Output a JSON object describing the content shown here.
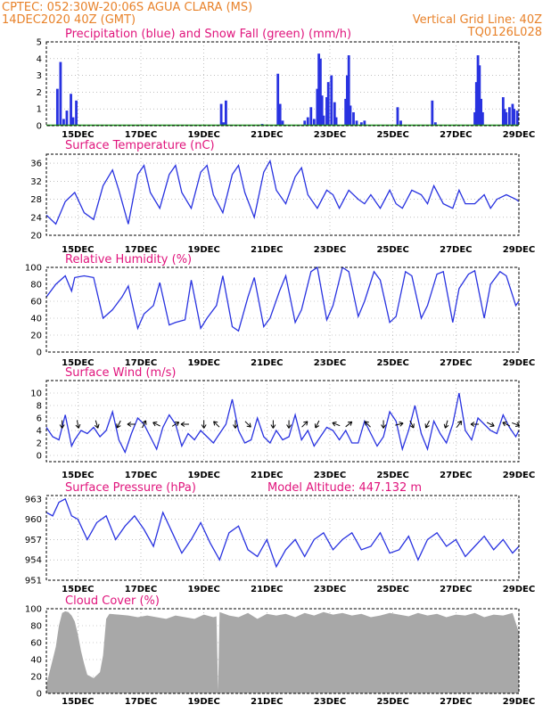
{
  "header": {
    "line1_left": "CPTEC:   052:30W-20:06S  AGUA CLARA (MS)",
    "line2_left": "14DEC2020 40Z (GMT)",
    "line2_right": "Vertical Grid Line: 40Z",
    "line3_right": "TQ0126L028"
  },
  "colors": {
    "header": "#e8822a",
    "title": "#e0147c",
    "precip": "#2832e0",
    "snow": "#1ea01e",
    "line": "#2832e0",
    "cloud": "#a8a8a8",
    "wind_arrow": "#000000"
  },
  "chart_data": [
    {
      "id": "precip",
      "type": "bar",
      "title": "Precipitation (blue) and Snow Fall (green) (mm/h)",
      "ylim": [
        0,
        5
      ],
      "yticks": [
        0,
        1,
        2,
        3,
        4,
        5
      ],
      "x_day_range": [
        14.0,
        29.0
      ],
      "xticks": [
        "15DEC",
        "17DEC",
        "19DEC",
        "21DEC",
        "23DEC",
        "25DEC",
        "27DEC",
        "29DEC"
      ],
      "series": [
        {
          "name": "Precipitation",
          "points": [
            [
              14.35,
              2.2
            ],
            [
              14.45,
              3.8
            ],
            [
              14.55,
              0.4
            ],
            [
              14.65,
              0.9
            ],
            [
              14.78,
              1.9
            ],
            [
              14.85,
              0.5
            ],
            [
              14.95,
              1.5
            ],
            [
              19.55,
              1.3
            ],
            [
              19.62,
              0.2
            ],
            [
              19.7,
              1.5
            ],
            [
              20.85,
              0.1
            ],
            [
              21.35,
              3.1
            ],
            [
              21.42,
              1.3
            ],
            [
              21.5,
              0.3
            ],
            [
              22.2,
              0.3
            ],
            [
              22.3,
              0.5
            ],
            [
              22.4,
              1.1
            ],
            [
              22.5,
              0.4
            ],
            [
              22.6,
              2.2
            ],
            [
              22.65,
              4.3
            ],
            [
              22.7,
              4.0
            ],
            [
              22.75,
              1.8
            ],
            [
              22.8,
              0.6
            ],
            [
              22.9,
              1.7
            ],
            [
              22.95,
              2.6
            ],
            [
              23.05,
              3.0
            ],
            [
              23.15,
              1.4
            ],
            [
              23.2,
              0.5
            ],
            [
              23.5,
              1.6
            ],
            [
              23.55,
              3.0
            ],
            [
              23.6,
              4.2
            ],
            [
              23.65,
              1.2
            ],
            [
              23.75,
              0.8
            ],
            [
              23.85,
              0.3
            ],
            [
              24.0,
              0.2
            ],
            [
              24.1,
              0.3
            ],
            [
              25.15,
              1.1
            ],
            [
              25.25,
              0.3
            ],
            [
              26.25,
              1.5
            ],
            [
              26.35,
              0.2
            ],
            [
              27.6,
              0.8
            ],
            [
              27.65,
              2.6
            ],
            [
              27.7,
              4.2
            ],
            [
              27.75,
              3.6
            ],
            [
              27.8,
              1.6
            ],
            [
              27.85,
              0.8
            ],
            [
              28.5,
              1.7
            ],
            [
              28.55,
              1.0
            ],
            [
              28.6,
              0.8
            ],
            [
              28.7,
              1.1
            ],
            [
              28.8,
              1.3
            ],
            [
              28.85,
              1.0
            ],
            [
              28.95,
              0.9
            ]
          ]
        },
        {
          "name": "Snow Fall",
          "points": []
        }
      ]
    },
    {
      "id": "temp",
      "type": "line",
      "title": "Surface Temperature (nC)",
      "ylim": [
        20,
        38
      ],
      "yticks": [
        20,
        24,
        28,
        32,
        36
      ],
      "x_day_range": [
        14.0,
        29.0
      ],
      "xticks": [
        "15DEC",
        "17DEC",
        "19DEC",
        "21DEC",
        "23DEC",
        "25DEC",
        "27DEC",
        "29DEC"
      ],
      "x": [
        14.0,
        14.3,
        14.6,
        14.9,
        15.2,
        15.5,
        15.8,
        16.1,
        16.3,
        16.6,
        16.9,
        17.1,
        17.3,
        17.6,
        17.9,
        18.1,
        18.3,
        18.6,
        18.9,
        19.1,
        19.3,
        19.6,
        19.9,
        20.1,
        20.3,
        20.6,
        20.9,
        21.1,
        21.3,
        21.6,
        21.9,
        22.1,
        22.3,
        22.6,
        22.9,
        23.1,
        23.3,
        23.6,
        23.9,
        24.1,
        24.3,
        24.6,
        24.9,
        25.1,
        25.3,
        25.6,
        25.9,
        26.1,
        26.3,
        26.6,
        26.9,
        27.1,
        27.3,
        27.6,
        27.9,
        28.1,
        28.3,
        28.6,
        28.9,
        29.0
      ],
      "y": [
        24.5,
        22.5,
        27.5,
        29.5,
        25,
        23.5,
        31,
        34.5,
        30,
        22.5,
        33.5,
        35.5,
        29.5,
        26,
        33.5,
        35.5,
        29.5,
        26,
        34,
        35.5,
        29,
        25,
        33.5,
        35.5,
        29.5,
        24,
        34,
        36.5,
        30,
        27,
        33,
        35,
        29,
        26,
        30,
        29,
        26,
        30,
        28,
        27,
        29,
        26,
        30,
        27,
        26,
        30,
        29,
        27,
        31,
        27,
        26,
        30,
        27,
        27,
        29,
        26,
        28,
        29,
        28,
        27.5
      ]
    },
    {
      "id": "rh",
      "type": "line",
      "title": "Relative Humidity (%)",
      "ylim": [
        0,
        100
      ],
      "yticks": [
        0,
        20,
        40,
        60,
        80,
        100
      ],
      "x_day_range": [
        14.0,
        29.0
      ],
      "xticks": [
        "15DEC",
        "17DEC",
        "19DEC",
        "21DEC",
        "23DEC",
        "25DEC",
        "27DEC",
        "29DEC"
      ],
      "x": [
        14.0,
        14.3,
        14.6,
        14.8,
        14.9,
        15.2,
        15.5,
        15.8,
        16.1,
        16.4,
        16.6,
        16.9,
        17.1,
        17.4,
        17.6,
        17.9,
        18.1,
        18.4,
        18.6,
        18.9,
        19.1,
        19.4,
        19.6,
        19.9,
        20.1,
        20.4,
        20.6,
        20.9,
        21.1,
        21.4,
        21.6,
        21.9,
        22.1,
        22.4,
        22.6,
        22.9,
        23.1,
        23.4,
        23.6,
        23.9,
        24.1,
        24.4,
        24.6,
        24.9,
        25.1,
        25.4,
        25.6,
        25.9,
        26.1,
        26.4,
        26.6,
        26.9,
        27.1,
        27.4,
        27.6,
        27.9,
        28.1,
        28.4,
        28.6,
        28.9,
        29.0
      ],
      "y": [
        65,
        80,
        90,
        72,
        88,
        90,
        88,
        40,
        50,
        65,
        78,
        28,
        45,
        55,
        82,
        32,
        35,
        38,
        85,
        28,
        40,
        55,
        90,
        30,
        25,
        65,
        88,
        30,
        40,
        72,
        90,
        35,
        50,
        95,
        100,
        38,
        55,
        100,
        95,
        42,
        60,
        95,
        85,
        35,
        42,
        95,
        90,
        40,
        55,
        92,
        95,
        35,
        75,
        92,
        96,
        40,
        80,
        95,
        90,
        55,
        60
      ]
    },
    {
      "id": "wind",
      "type": "line",
      "title": "Surface Wind (m/s)",
      "ylim": [
        -1,
        12
      ],
      "yticks": [
        0,
        2,
        4,
        6,
        8,
        10
      ],
      "x_day_range": [
        14.0,
        29.0
      ],
      "xticks": [
        "15DEC",
        "17DEC",
        "19DEC",
        "21DEC",
        "23DEC",
        "25DEC",
        "27DEC",
        "29DEC"
      ],
      "x": [
        14.0,
        14.2,
        14.4,
        14.6,
        14.8,
        14.9,
        15.1,
        15.3,
        15.5,
        15.7,
        15.9,
        16.1,
        16.3,
        16.5,
        16.7,
        16.9,
        17.1,
        17.3,
        17.5,
        17.7,
        17.9,
        18.1,
        18.3,
        18.5,
        18.7,
        18.9,
        19.1,
        19.3,
        19.5,
        19.7,
        19.9,
        20.1,
        20.3,
        20.5,
        20.7,
        20.9,
        21.1,
        21.3,
        21.5,
        21.7,
        21.9,
        22.1,
        22.3,
        22.5,
        22.7,
        22.9,
        23.1,
        23.3,
        23.5,
        23.7,
        23.9,
        24.1,
        24.3,
        24.5,
        24.7,
        24.9,
        25.1,
        25.3,
        25.5,
        25.7,
        25.9,
        26.1,
        26.3,
        26.5,
        26.7,
        26.9,
        27.1,
        27.3,
        27.5,
        27.7,
        27.9,
        28.1,
        28.3,
        28.5,
        28.7,
        28.9,
        29.0
      ],
      "y": [
        4.5,
        3.0,
        2.5,
        6.5,
        1.5,
        2.5,
        4.0,
        3.5,
        4.5,
        3.0,
        4.0,
        7.0,
        2.5,
        0.5,
        3.5,
        6.0,
        5.0,
        3.0,
        1.0,
        4.5,
        6.5,
        5.0,
        1.5,
        3.5,
        2.5,
        4.0,
        3.0,
        2.0,
        3.5,
        5.0,
        9.0,
        4.0,
        2.0,
        2.5,
        6.0,
        3.0,
        2.0,
        4.0,
        2.5,
        3.0,
        6.5,
        2.5,
        4.0,
        1.5,
        3.0,
        4.5,
        4.0,
        2.5,
        4.0,
        2.0,
        2.0,
        5.5,
        3.5,
        1.5,
        3.0,
        7.0,
        5.5,
        1.0,
        4.0,
        8.0,
        3.5,
        1.0,
        5.5,
        3.5,
        2.0,
        5.0,
        10.0,
        4.0,
        2.5,
        6.0,
        5.0,
        4.0,
        3.5,
        6.5,
        4.5,
        3.0,
        4.0
      ],
      "arrows": [
        [
          14.5,
          0.0,
          -1.0
        ],
        [
          15.0,
          0.2,
          -1.0
        ],
        [
          15.6,
          0.3,
          -1.0
        ],
        [
          16.3,
          -0.5,
          -1.0
        ],
        [
          16.7,
          -1.0,
          0.0
        ],
        [
          17.1,
          0.5,
          1.0
        ],
        [
          17.5,
          -1.0,
          0.5
        ],
        [
          18.1,
          0.8,
          0.5
        ],
        [
          18.4,
          -1.0,
          0.0
        ],
        [
          19.0,
          0.0,
          -1.0
        ],
        [
          19.4,
          -0.7,
          0.7
        ],
        [
          20.0,
          0.0,
          -1.0
        ],
        [
          20.4,
          0.8,
          -0.8
        ],
        [
          21.2,
          0.0,
          -1.0
        ],
        [
          21.7,
          0.0,
          -1.0
        ],
        [
          22.2,
          0.7,
          0.7
        ],
        [
          22.6,
          -0.5,
          -1.0
        ],
        [
          23.2,
          -1.0,
          0.4
        ],
        [
          23.6,
          1.0,
          0.8
        ],
        [
          24.2,
          -0.8,
          0.8
        ],
        [
          24.7,
          0.0,
          -1.0
        ],
        [
          25.2,
          0.8,
          0.2
        ],
        [
          25.6,
          0.5,
          -1.0
        ],
        [
          26.1,
          -0.5,
          -1.0
        ],
        [
          26.7,
          -0.3,
          -1.0
        ],
        [
          27.1,
          0.6,
          0.8
        ],
        [
          27.6,
          -1.0,
          0.0
        ],
        [
          28.1,
          1.0,
          -0.5
        ],
        [
          28.6,
          -1.0,
          0.5
        ],
        [
          28.9,
          0.8,
          -0.3
        ]
      ]
    },
    {
      "id": "pressure",
      "type": "line",
      "title": "Surface Pressure (hPa)",
      "subtitle": "Model Altitude: 447.132  m",
      "ylim": [
        951,
        963.5
      ],
      "yticks": [
        951,
        954,
        957,
        960,
        963
      ],
      "x_day_range": [
        14.0,
        29.0
      ],
      "xticks": [
        "15DEC",
        "17DEC",
        "19DEC",
        "21DEC",
        "23DEC",
        "25DEC",
        "27DEC",
        "29DEC"
      ],
      "x": [
        14.0,
        14.2,
        14.4,
        14.6,
        14.8,
        15.0,
        15.3,
        15.6,
        15.9,
        16.2,
        16.5,
        16.8,
        17.1,
        17.4,
        17.7,
        18.0,
        18.3,
        18.6,
        18.9,
        19.2,
        19.5,
        19.8,
        20.1,
        20.4,
        20.7,
        21.0,
        21.3,
        21.6,
        21.9,
        22.2,
        22.5,
        22.8,
        23.1,
        23.4,
        23.7,
        24.0,
        24.3,
        24.6,
        24.9,
        25.2,
        25.5,
        25.8,
        26.1,
        26.4,
        26.7,
        27.0,
        27.3,
        27.6,
        27.9,
        28.2,
        28.5,
        28.8,
        29.0
      ],
      "y": [
        961,
        960.5,
        962.5,
        963,
        960.5,
        960,
        957,
        959.5,
        960.5,
        957,
        959,
        960.5,
        958.5,
        956,
        961,
        958,
        955,
        957,
        959.5,
        956.5,
        954,
        958,
        959,
        955.5,
        954.5,
        957,
        953,
        955.5,
        957,
        954.5,
        957,
        958,
        955.5,
        957,
        958,
        955.5,
        956,
        958,
        955,
        955.5,
        957.5,
        954,
        957,
        958,
        956,
        957,
        954.5,
        956,
        957.5,
        955.5,
        957,
        955,
        956
      ]
    },
    {
      "id": "cloud",
      "type": "area",
      "title": "Cloud Cover (%)",
      "ylim": [
        0,
        100
      ],
      "yticks": [
        0,
        20,
        40,
        60,
        80,
        100
      ],
      "x_day_range": [
        14.0,
        29.0
      ],
      "xticks": [
        "15DEC",
        "17DEC",
        "19DEC",
        "21DEC",
        "23DEC",
        "25DEC",
        "27DEC",
        "29DEC"
      ],
      "x": [
        14.0,
        14.1,
        14.2,
        14.3,
        14.4,
        14.5,
        14.6,
        14.7,
        14.8,
        14.9,
        15.0,
        15.1,
        15.2,
        15.3,
        15.5,
        15.7,
        15.8,
        15.9,
        16.0,
        16.3,
        16.6,
        16.9,
        17.2,
        17.5,
        17.8,
        18.1,
        18.4,
        18.7,
        19.0,
        19.3,
        19.4,
        19.45,
        19.5,
        19.8,
        20.1,
        20.4,
        20.7,
        21.0,
        21.3,
        21.6,
        21.9,
        22.2,
        22.5,
        22.8,
        23.1,
        23.4,
        23.7,
        24.0,
        24.3,
        24.6,
        24.9,
        25.2,
        25.5,
        25.8,
        26.1,
        26.4,
        26.7,
        27.0,
        27.3,
        27.6,
        27.9,
        28.2,
        28.5,
        28.8,
        29.0
      ],
      "y": [
        10,
        25,
        40,
        55,
        80,
        95,
        97,
        96,
        92,
        85,
        70,
        50,
        35,
        22,
        18,
        25,
        45,
        88,
        94,
        93,
        92,
        90,
        92,
        90,
        88,
        92,
        90,
        88,
        93,
        90,
        91,
        3,
        96,
        92,
        90,
        95,
        88,
        94,
        92,
        94,
        90,
        95,
        92,
        96,
        93,
        95,
        92,
        94,
        90,
        92,
        95,
        93,
        91,
        95,
        92,
        94,
        90,
        93,
        92,
        95,
        90,
        93,
        92,
        95,
        72
      ]
    }
  ]
}
